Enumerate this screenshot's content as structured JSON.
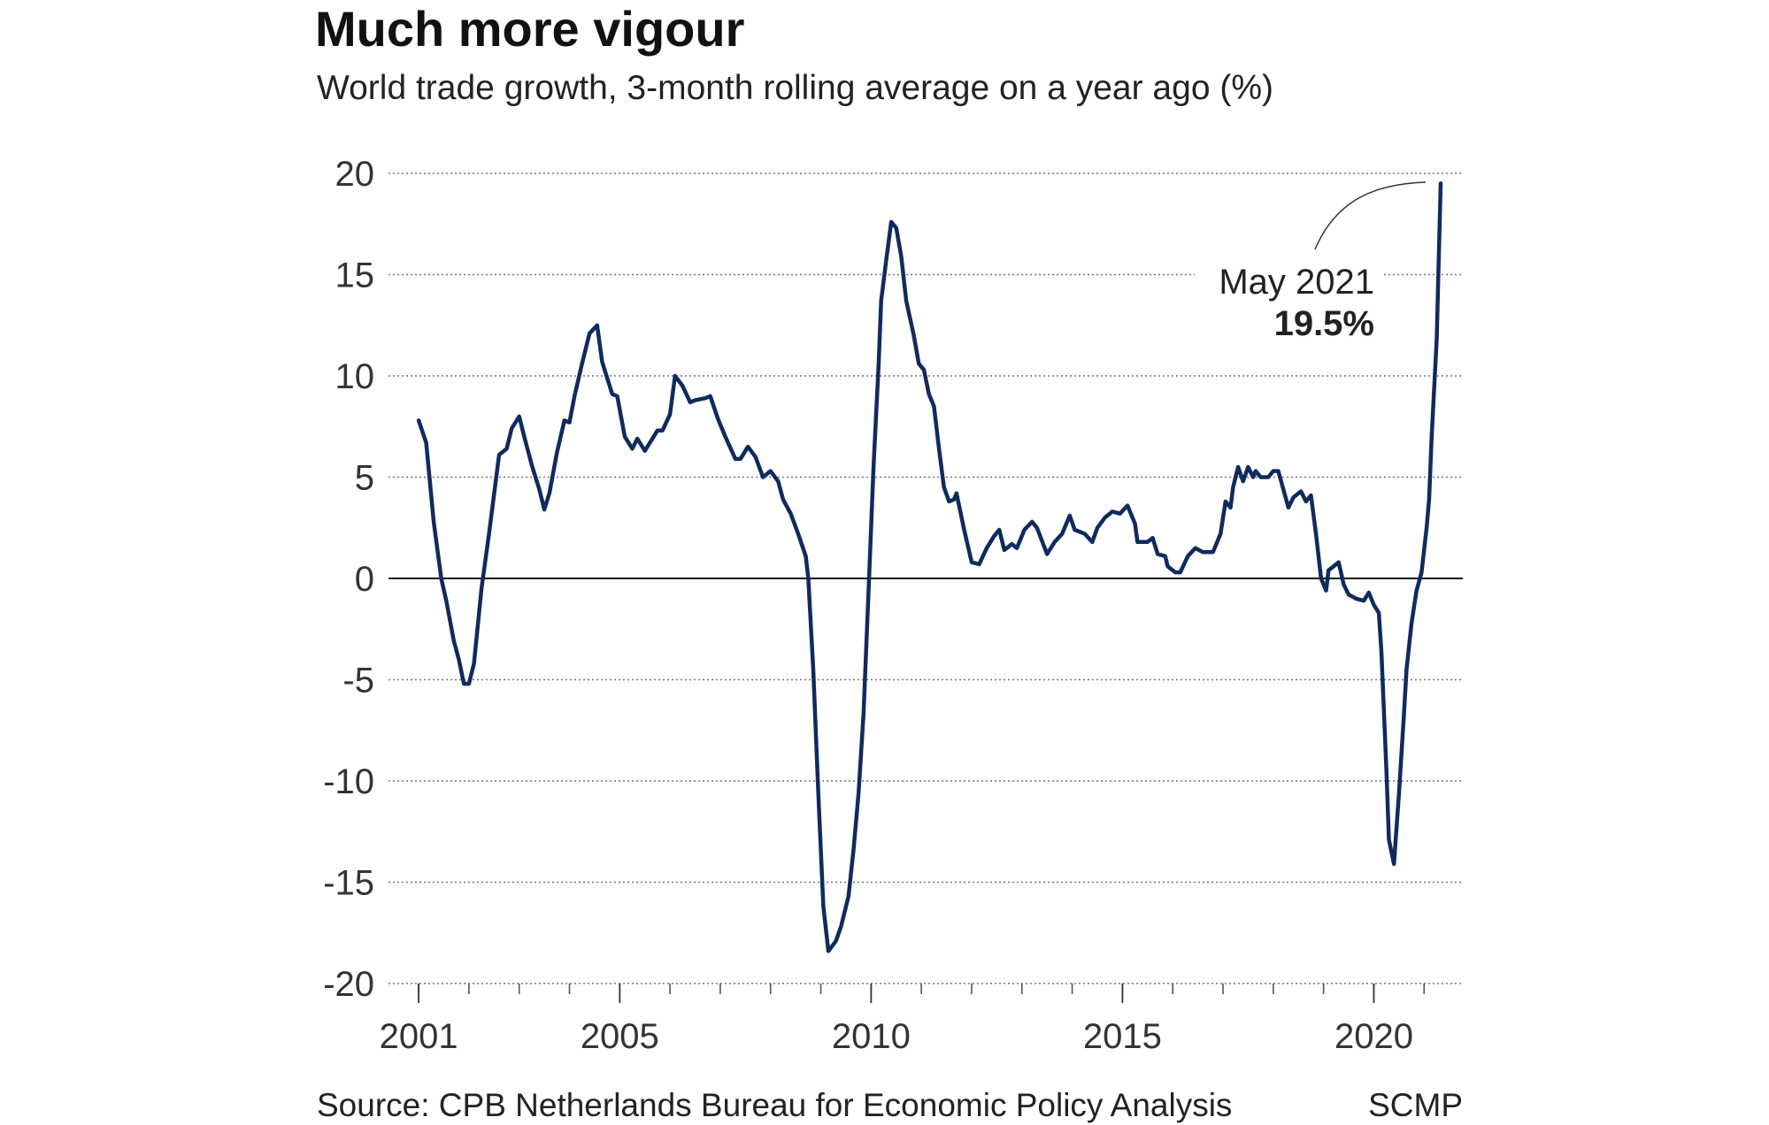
{
  "chart_data": {
    "type": "line",
    "title": "Much more vigour",
    "subtitle": "World trade growth, 3-month rolling average on a year ago (%)",
    "source": "Source: CPB Netherlands Bureau for Economic Policy Analysis",
    "credit": "SCMP",
    "annotation": {
      "date": "May 2021",
      "value": "19.5%"
    },
    "color": "#0f2b5e",
    "grid": true,
    "xlim": [
      2000.4,
      2021.77
    ],
    "ylim": [
      -20,
      20
    ],
    "yticks": [
      20,
      15,
      10,
      5,
      0,
      -5,
      -10,
      -15,
      -20
    ],
    "xticks": [
      2001,
      2005,
      2010,
      2015,
      2020
    ],
    "xminor_ticks": [
      2001,
      2002,
      2003,
      2004,
      2005,
      2006,
      2007,
      2008,
      2009,
      2010,
      2011,
      2012,
      2013,
      2014,
      2015,
      2016,
      2017,
      2018,
      2019,
      2020,
      2021
    ],
    "x": [
      2001.0,
      2001.15,
      2001.3,
      2001.45,
      2001.55,
      2001.7,
      2001.8,
      2001.9,
      2002.0,
      2002.1,
      2002.25,
      2002.4,
      2002.6,
      2002.75,
      2002.85,
      2003.0,
      2003.1,
      2003.25,
      2003.4,
      2003.5,
      2003.6,
      2003.75,
      2003.9,
      2004.0,
      2004.1,
      2004.25,
      2004.4,
      2004.55,
      2004.65,
      2004.85,
      2004.95,
      2005.1,
      2005.25,
      2005.35,
      2005.5,
      2005.6,
      2005.75,
      2005.85,
      2006.0,
      2006.1,
      2006.25,
      2006.4,
      2006.5,
      2006.7,
      2006.8,
      2006.95,
      2007.1,
      2007.3,
      2007.4,
      2007.55,
      2007.7,
      2007.85,
      2008.0,
      2008.15,
      2008.25,
      2008.4,
      2008.55,
      2008.7,
      2008.75,
      2008.85,
      2008.95,
      2009.05,
      2009.15,
      2009.3,
      2009.4,
      2009.55,
      2009.65,
      2009.75,
      2009.85,
      2009.95,
      2010.05,
      2010.15,
      2010.2,
      2010.3,
      2010.4,
      2010.5,
      2010.6,
      2010.7,
      2010.85,
      2010.95,
      2011.05,
      2011.15,
      2011.25,
      2011.35,
      2011.45,
      2011.55,
      2011.65,
      2011.7,
      2011.85,
      2012.0,
      2012.15,
      2012.3,
      2012.45,
      2012.55,
      2012.65,
      2012.8,
      2012.9,
      2013.05,
      2013.2,
      2013.3,
      2013.5,
      2013.65,
      2013.8,
      2013.95,
      2014.05,
      2014.25,
      2014.4,
      2014.5,
      2014.65,
      2014.8,
      2014.95,
      2015.1,
      2015.25,
      2015.3,
      2015.5,
      2015.6,
      2015.7,
      2015.85,
      2015.9,
      2016.05,
      2016.15,
      2016.3,
      2016.45,
      2016.6,
      2016.7,
      2016.8,
      2016.95,
      2017.05,
      2017.15,
      2017.2,
      2017.3,
      2017.4,
      2017.5,
      2017.6,
      2017.65,
      2017.75,
      2017.9,
      2018.0,
      2018.1,
      2018.2,
      2018.3,
      2018.4,
      2018.55,
      2018.65,
      2018.75,
      2018.85,
      2018.95,
      2019.05,
      2019.1,
      2019.2,
      2019.3,
      2019.4,
      2019.5,
      2019.65,
      2019.8,
      2019.9,
      2020.0,
      2020.1,
      2020.15,
      2020.25,
      2020.3,
      2020.4,
      2020.5,
      2020.6,
      2020.65,
      2020.75,
      2020.85,
      2020.95,
      2021.05,
      2021.1,
      2021.15,
      2021.25,
      2021.33
    ],
    "values": [
      7.8,
      6.7,
      2.8,
      0,
      -1.1,
      -3.1,
      -4.0,
      -5.2,
      -5.2,
      -4.2,
      -0.5,
      2.2,
      6.1,
      6.4,
      7.4,
      8.0,
      7.0,
      5.6,
      4.4,
      3.4,
      4.2,
      6.2,
      7.8,
      7.7,
      9.0,
      10.6,
      12.1,
      12.5,
      10.7,
      9.1,
      9.0,
      7.0,
      6.4,
      6.9,
      6.3,
      6.7,
      7.3,
      7.3,
      8.1,
      10.0,
      9.5,
      8.7,
      8.8,
      8.9,
      9.0,
      7.9,
      7.0,
      5.9,
      5.9,
      6.5,
      6.0,
      5.0,
      5.3,
      4.8,
      3.9,
      3.2,
      2.2,
      1.1,
      0,
      -4.5,
      -10.6,
      -16.2,
      -18.4,
      -17.9,
      -17.2,
      -15.7,
      -13.4,
      -10.6,
      -6.7,
      -0.6,
      5.6,
      10.6,
      13.7,
      15.7,
      17.6,
      17.3,
      15.9,
      13.7,
      12.0,
      10.6,
      10.3,
      9.1,
      8.5,
      6.4,
      4.5,
      3.8,
      3.9,
      4.2,
      2.4,
      0.8,
      0.7,
      1.5,
      2.1,
      2.4,
      1.4,
      1.7,
      1.5,
      2.4,
      2.8,
      2.5,
      1.2,
      1.8,
      2.2,
      3.1,
      2.4,
      2.2,
      1.8,
      2.5,
      3.0,
      3.3,
      3.2,
      3.6,
      2.7,
      1.8,
      1.8,
      2.0,
      1.2,
      1.1,
      0.6,
      0.3,
      0.3,
      1.1,
      1.5,
      1.3,
      1.3,
      1.3,
      2.2,
      3.8,
      3.5,
      4.5,
      5.5,
      4.8,
      5.5,
      5.0,
      5.3,
      5.0,
      5.0,
      5.3,
      5.3,
      4.4,
      3.5,
      4.0,
      4.3,
      3.8,
      4.1,
      2.2,
      0,
      -0.6,
      0.4,
      0.6,
      0.8,
      -0.3,
      -0.8,
      -1.0,
      -1.1,
      -0.7,
      -1.3,
      -1.7,
      -3.6,
      -9.5,
      -12.9,
      -14.1,
      -10.6,
      -6.7,
      -4.5,
      -2.2,
      -0.6,
      0.3,
      2.5,
      3.9,
      7.0,
      11.8,
      19.5
    ]
  }
}
